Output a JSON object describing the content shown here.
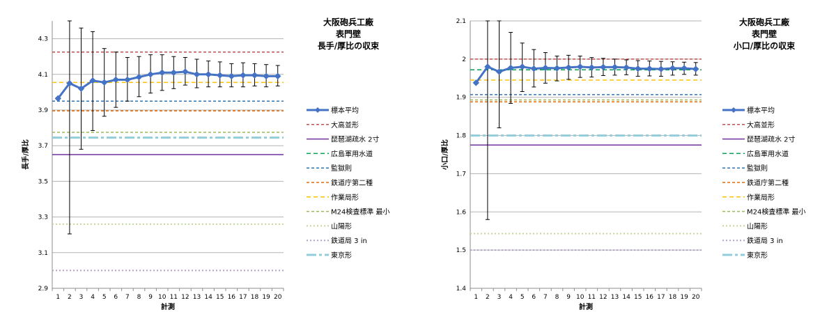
{
  "chart_data": [
    {
      "type": "line",
      "title_lines": [
        "大阪砲兵工廠",
        "表門壁",
        "長手/厚比の収束"
      ],
      "xlabel": "計測",
      "ylabel": "長手/厚比",
      "xlim": [
        1,
        20
      ],
      "ylim": [
        2.9,
        4.4
      ],
      "yticks": [
        2.9,
        3.1,
        3.3,
        3.5,
        3.7,
        3.9,
        4.1,
        4.3
      ],
      "ytick_labels": [
        "2.9",
        "3.1",
        "3.3",
        "3.5",
        "3.7",
        "3.9",
        "4.1",
        "4.3"
      ],
      "grid": true,
      "legend_position": "right",
      "series": [
        {
          "name": "標本平均",
          "kind": "mean",
          "color": "#4472c4",
          "x": [
            1,
            2,
            3,
            4,
            5,
            6,
            7,
            8,
            9,
            10,
            11,
            12,
            13,
            14,
            15,
            16,
            17,
            18,
            19,
            20
          ],
          "y": [
            3.965,
            4.05,
            4.02,
            4.065,
            4.055,
            4.07,
            4.07,
            4.085,
            4.1,
            4.11,
            4.11,
            4.115,
            4.1,
            4.1,
            4.095,
            4.09,
            4.095,
            4.095,
            4.09,
            4.09
          ],
          "err_high": [
            3.965,
            4.4,
            4.36,
            4.34,
            4.245,
            4.225,
            4.195,
            4.2,
            4.21,
            4.21,
            4.2,
            4.195,
            4.185,
            4.175,
            4.17,
            4.16,
            4.165,
            4.16,
            4.155,
            4.15
          ],
          "err_low": [
            3.965,
            3.205,
            3.68,
            3.785,
            3.865,
            3.915,
            3.95,
            3.975,
            3.995,
            4.01,
            4.02,
            4.04,
            4.025,
            4.03,
            4.03,
            4.03,
            4.03,
            4.035,
            4.03,
            4.035
          ]
        },
        {
          "name": "大高並形",
          "kind": "ref",
          "color": "#c0504d",
          "dash": "4,3",
          "width": 1.5,
          "value": 4.225
        },
        {
          "name": "琵琶湖疏水 2寸",
          "kind": "ref",
          "color": "#7030a0",
          "dash": "",
          "width": 1.5,
          "value": 3.65
        },
        {
          "name": "広島軍用水道",
          "kind": "ref",
          "color": "#00a050",
          "dash": "6,4",
          "width": 1.5,
          "value": null
        },
        {
          "name": "監獄則",
          "kind": "ref",
          "color": "#2e75b6",
          "dash": "4,3",
          "width": 1.5,
          "value": 3.95
        },
        {
          "name": "鉄道庁第二種",
          "kind": "ref",
          "color": "#e46c0a",
          "dash": "4,3",
          "width": 1.5,
          "value": 3.895
        },
        {
          "name": "作業局形",
          "kind": "ref",
          "color": "#ffc000",
          "dash": "6,4",
          "width": 1.5,
          "value": 4.055
        },
        {
          "name": "M24検査標準 最小",
          "kind": "ref",
          "color": "#9bbb59",
          "dash": "4,3",
          "width": 1.5,
          "value": 3.775
        },
        {
          "name": "山陽形",
          "kind": "ref",
          "color": "#c4d79b",
          "dash": "2,3",
          "width": 2,
          "value": 3.26
        },
        {
          "name": "鉄道局 3 in",
          "kind": "ref",
          "color": "#b3a2c7",
          "dash": "2,3",
          "width": 2,
          "value": 3.0
        },
        {
          "name": "東京形",
          "kind": "ref",
          "color": "#92cddc",
          "dash": "14,4,4,4",
          "width": 3,
          "value": 3.745
        }
      ]
    },
    {
      "type": "line",
      "title_lines": [
        "大阪砲兵工廠",
        "表門壁",
        "小口/厚比の収束"
      ],
      "xlabel": "計測",
      "ylabel": "小口/厚比",
      "xlim": [
        1,
        20
      ],
      "ylim": [
        1.4,
        2.1
      ],
      "yticks": [
        1.4,
        1.5,
        1.6,
        1.7,
        1.8,
        1.9,
        2.0,
        2.1
      ],
      "ytick_labels": [
        "1.4",
        "1.5",
        "1.6",
        "1.7",
        "1.8",
        "1.9",
        "2",
        "2.1"
      ],
      "grid": true,
      "legend_position": "right",
      "series": [
        {
          "name": "標本平均",
          "kind": "mean",
          "color": "#4472c4",
          "x": [
            1,
            2,
            3,
            4,
            5,
            6,
            7,
            8,
            9,
            10,
            11,
            12,
            13,
            14,
            15,
            16,
            17,
            18,
            19,
            20
          ],
          "y": [
            1.938,
            1.98,
            1.967,
            1.977,
            1.98,
            1.975,
            1.977,
            1.976,
            1.978,
            1.98,
            1.978,
            1.979,
            1.979,
            1.978,
            1.975,
            1.975,
            1.974,
            1.976,
            1.976,
            1.974
          ],
          "err_high": [
            1.938,
            2.1,
            2.1,
            2.07,
            2.042,
            2.025,
            2.017,
            2.008,
            2.01,
            2.008,
            2.004,
            2.002,
            2.0,
            1.998,
            1.996,
            1.995,
            1.994,
            1.993,
            1.992,
            1.991
          ],
          "err_low": [
            1.938,
            1.58,
            1.82,
            1.884,
            1.915,
            1.927,
            1.937,
            1.943,
            1.947,
            1.952,
            1.953,
            1.957,
            1.958,
            1.959,
            1.955,
            1.956,
            1.955,
            1.958,
            1.96,
            1.958
          ]
        },
        {
          "name": "大高並形",
          "kind": "ref",
          "color": "#c0504d",
          "dash": "4,3",
          "width": 1.5,
          "value": 2.0
        },
        {
          "name": "琵琶湖疏水 2寸",
          "kind": "ref",
          "color": "#7030a0",
          "dash": "",
          "width": 1.5,
          "value": 1.775
        },
        {
          "name": "広島軍用水道",
          "kind": "ref",
          "color": "#00a050",
          "dash": "6,4",
          "width": 1.5,
          "value": 1.972
        },
        {
          "name": "監獄則",
          "kind": "ref",
          "color": "#2e75b6",
          "dash": "4,3",
          "width": 1.5,
          "value": 1.907
        },
        {
          "name": "鉄道庁第二種",
          "kind": "ref",
          "color": "#e46c0a",
          "dash": "4,3",
          "width": 1.5,
          "value": 1.888
        },
        {
          "name": "作業局形",
          "kind": "ref",
          "color": "#ffc000",
          "dash": "6,4",
          "width": 1.5,
          "value": 1.945
        },
        {
          "name": "M24検査標準 最小",
          "kind": "ref",
          "color": "#9bbb59",
          "dash": "4,3",
          "width": 1.5,
          "value": 1.893
        },
        {
          "name": "山陽形",
          "kind": "ref",
          "color": "#c4d79b",
          "dash": "2,3",
          "width": 2,
          "value": 1.543
        },
        {
          "name": "鉄道局 3 in",
          "kind": "ref",
          "color": "#b3a2c7",
          "dash": "2,3",
          "width": 2,
          "value": 1.5
        },
        {
          "name": "東京形",
          "kind": "ref",
          "color": "#92cddc",
          "dash": "14,4,4,4",
          "width": 3,
          "value": 1.8
        }
      ]
    }
  ]
}
